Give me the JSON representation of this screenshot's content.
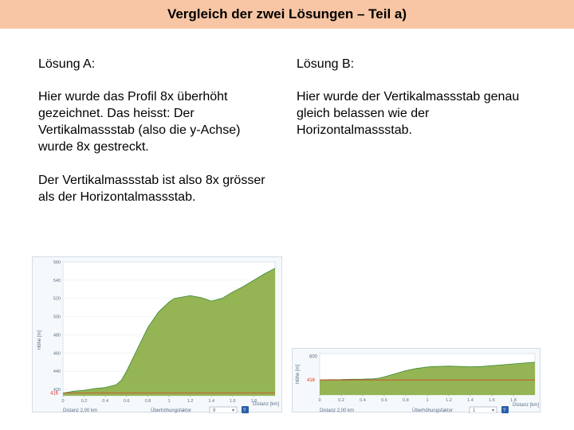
{
  "slide": {
    "title": "Vergleich der zwei Lösungen – Teil a)"
  },
  "column_a": {
    "heading": "Lösung A:",
    "paragraph1": "Hier wurde das Profil 8x überhöht gezeichnet. Das heisst: Der Vertikalmassstab (also die y-Achse) wurde 8x gestreckt.",
    "paragraph2": "Der Vertikalmassstab ist also 8x grösser als der Horizontalmassstab."
  },
  "column_b": {
    "heading": "Lösung B:",
    "paragraph1": "Hier wurde der Vertikalmassstab genau gleich belassen wie der Horizontalmassstab."
  },
  "chart_a": {
    "ylabel": "Höhe [m]",
    "distance_label": "Distanz 2,00 km",
    "exaggeration_label": "Überhöhungsfaktor",
    "exaggeration_value": "8",
    "xunit_label": "Distanz [km]",
    "marker_label": "416",
    "colors": {
      "fill": "#8fb04a",
      "line": "#3a8a3a",
      "marker": "#e03020"
    }
  },
  "chart_b": {
    "ylabel": "Höhe [m]",
    "distance_label": "Distanz 2,00 km",
    "exaggeration_label": "Überhöhungsfaktor",
    "exaggeration_value": "1",
    "xunit_label": "Distanz [km]",
    "marker_label": "416",
    "top_tick": "600",
    "colors": {
      "fill": "#8fb04a",
      "line": "#3a8a3a",
      "marker": "#e03020"
    }
  },
  "chart_data": [
    {
      "type": "area",
      "x": [
        0,
        0.1,
        0.2,
        0.3,
        0.4,
        0.5,
        0.55,
        0.6,
        0.7,
        0.8,
        0.9,
        1.0,
        1.05,
        1.1,
        1.2,
        1.3,
        1.4,
        1.5,
        1.6,
        1.7,
        1.8,
        1.9,
        2.0
      ],
      "values": [
        416,
        418,
        419,
        421,
        422,
        425,
        430,
        440,
        464,
        488,
        505,
        516,
        520,
        521,
        523,
        521,
        517,
        520,
        527,
        533,
        540,
        547,
        553
      ],
      "xlim": [
        0,
        2.0
      ],
      "ylim": [
        413,
        560
      ],
      "xticks": [
        "0",
        "0.2",
        "0.4",
        "0.6",
        "0.8",
        "1",
        "1.2",
        "1.4",
        "1.6",
        "1.8"
      ],
      "yticks": [
        "560",
        "540",
        "520",
        "500",
        "480",
        "460",
        "440",
        "420"
      ],
      "ylabel": "Höhe [m]",
      "xlabel": "Distanz [km]"
    },
    {
      "type": "area",
      "x": [
        0,
        0.1,
        0.2,
        0.3,
        0.4,
        0.5,
        0.55,
        0.6,
        0.7,
        0.8,
        0.9,
        1.0,
        1.05,
        1.1,
        1.2,
        1.3,
        1.4,
        1.5,
        1.6,
        1.7,
        1.8,
        1.9,
        2.0
      ],
      "values": [
        416,
        418,
        419,
        421,
        422,
        425,
        430,
        440,
        464,
        488,
        505,
        516,
        520,
        521,
        523,
        521,
        517,
        520,
        527,
        533,
        540,
        547,
        553
      ],
      "xlim": [
        0,
        2.0
      ],
      "ylim": [
        300,
        620
      ],
      "xticks": [
        "0",
        "0.2",
        "0.4",
        "0.6",
        "0.8",
        "1",
        "1.2",
        "1.4",
        "1.6",
        "1.8"
      ],
      "yticks": [
        "600"
      ],
      "ylabel": "Höhe [m]",
      "xlabel": "Distanz [km]"
    }
  ]
}
